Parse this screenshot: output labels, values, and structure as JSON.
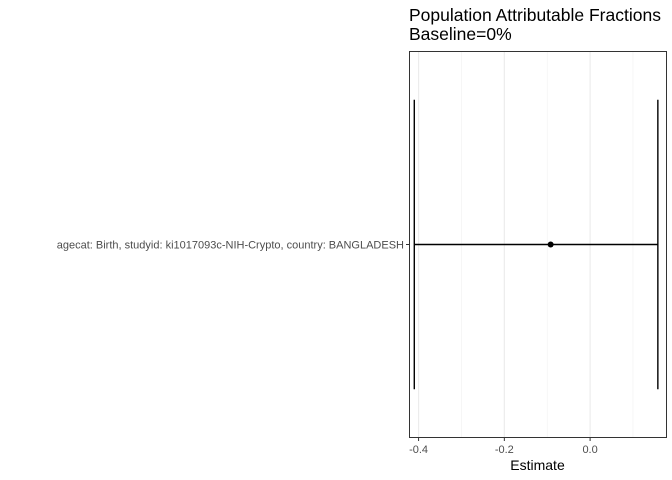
{
  "chart_data": {
    "type": "forest",
    "title": "Population Attributable Fractions",
    "subtitle": "Baseline=0%",
    "xlabel": "Estimate",
    "ylabel": "",
    "xlim": [
      -0.42,
      0.177
    ],
    "xticks": [
      -0.4,
      -0.2,
      0.0
    ],
    "xtick_labels": [
      "-0.4",
      "-0.2",
      "0.0"
    ],
    "grid": true,
    "rows": [
      {
        "label": "agecat: Birth, studyid: ki1017093c-NIH-Crypto, country: BANGLADESH",
        "estimate": -0.092,
        "ci_lower": -0.41,
        "ci_upper": 0.158
      }
    ]
  }
}
